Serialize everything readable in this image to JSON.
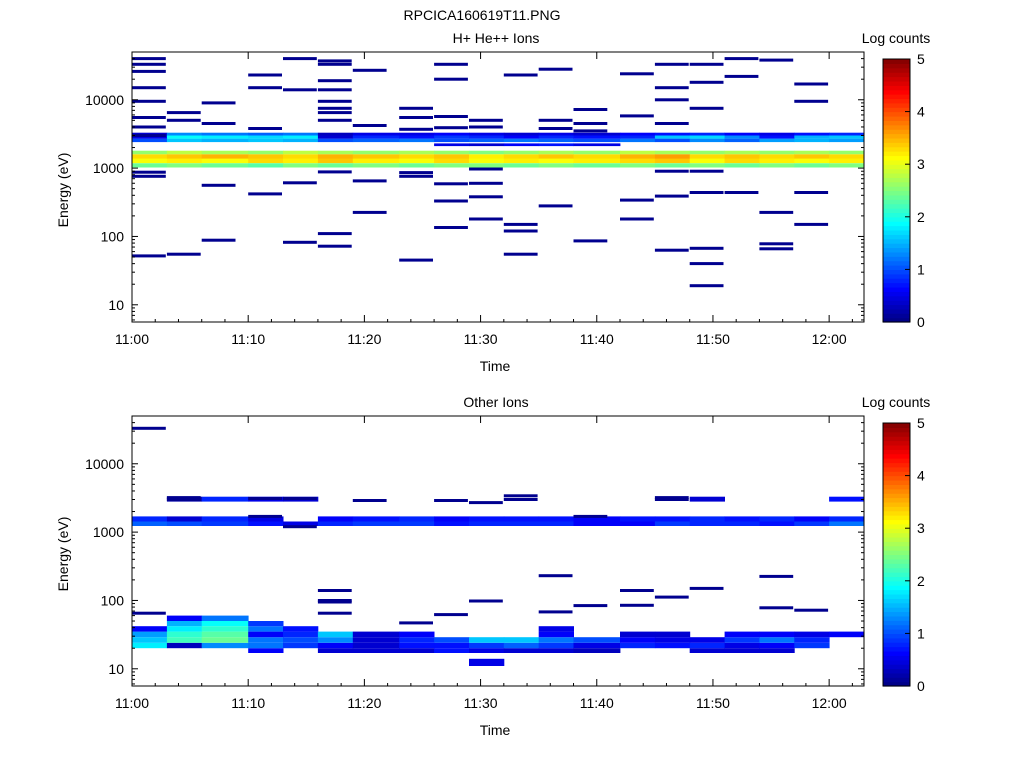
{
  "figure": {
    "title": "RPCICA160619T11.PNG"
  },
  "chart_data": [
    {
      "type": "heatmap",
      "title": "H+ He++ Ions",
      "xlabel": "Time",
      "ylabel": "Energy (eV)",
      "x_ticks": [
        "11:00",
        "11:10",
        "11:20",
        "11:30",
        "11:40",
        "11:50",
        "12:00"
      ],
      "x_range": [
        "11:00",
        "12:03"
      ],
      "y_scale": "log",
      "y_range": [
        5.6,
        50000
      ],
      "y_ticks": [
        "10",
        "100",
        "1000",
        "10000"
      ],
      "colorbar": {
        "label": "Log counts",
        "range": [
          0,
          5
        ],
        "ticks": [
          "0",
          "1",
          "2",
          "3",
          "4",
          "5"
        ],
        "colormap": "jet"
      },
      "time_bins": [
        "11:00",
        "11:03",
        "11:06",
        "11:10",
        "11:13",
        "11:16",
        "11:19",
        "11:23",
        "11:26",
        "11:29",
        "11:32",
        "11:35",
        "11:38",
        "11:42",
        "11:45",
        "11:48",
        "11:51",
        "11:54",
        "11:57",
        "12:00"
      ],
      "bands": [
        {
          "e_lo": 1020,
          "e_hi": 1180,
          "values": [
            2.4,
            2.5,
            2.4,
            2.3,
            2.5,
            2.4,
            2.5,
            2.4,
            2.5,
            2.5,
            2.4,
            2.5,
            2.4,
            2.5,
            2.4,
            2.5,
            2.4,
            2.5,
            2.4,
            2.5
          ]
        },
        {
          "e_lo": 1180,
          "e_hi": 1380,
          "values": [
            3.1,
            3.2,
            3.1,
            3.3,
            3.2,
            3.4,
            3.2,
            3.1,
            3.3,
            3.1,
            3.2,
            3.1,
            3.2,
            3.3,
            3.4,
            3.1,
            3.3,
            3.2,
            3.1,
            3.2
          ]
        },
        {
          "e_lo": 1380,
          "e_hi": 1600,
          "values": [
            3.3,
            3.4,
            3.5,
            3.4,
            3.3,
            3.5,
            3.4,
            3.3,
            3.4,
            3.2,
            3.3,
            3.4,
            3.3,
            3.5,
            3.6,
            3.3,
            3.4,
            3.3,
            3.4,
            3.3
          ]
        },
        {
          "e_lo": 1600,
          "e_hi": 1800,
          "values": [
            2.6,
            2.8,
            2.7,
            2.6,
            2.8,
            2.7,
            2.6,
            2.7,
            2.6,
            2.5,
            2.6,
            2.7,
            2.6,
            2.8,
            2.7,
            2.6,
            2.7,
            2.6,
            2.7,
            2.6
          ]
        },
        {
          "e_lo": 2400,
          "e_hi": 2700,
          "values": [
            1.0,
            1.6,
            1.5,
            1.6,
            1.5,
            1.0,
            1.1,
            1.2,
            1.0,
            1.1,
            1.2,
            1.1,
            1.0,
            1.2,
            1.0,
            1.3,
            1.1,
            1.4,
            1.5,
            1.4
          ]
        },
        {
          "e_lo": 2700,
          "e_hi": 3000,
          "values": [
            0.5,
            1.9,
            1.8,
            1.7,
            1.8,
            0.4,
            0.8,
            0.7,
            0.9,
            0.8,
            0.6,
            0.8,
            0.7,
            0.8,
            1.6,
            1.7,
            1.3,
            0.7,
            1.5,
            1.6
          ]
        },
        {
          "e_lo": 3000,
          "e_hi": 3300,
          "values": [
            0.4,
            1.3,
            1.2,
            1.1,
            1.2,
            0.3,
            0.5,
            0.5,
            0.6,
            0.5,
            0.4,
            0.5,
            0.4,
            0.6,
            0.7,
            0.8,
            0.6,
            0.5,
            0.7,
            0.8
          ]
        },
        {
          "e_lo": 2100,
          "e_hi": 2300,
          "values": [
            0.0,
            0.0,
            0.0,
            0.0,
            0.0,
            0.0,
            0.0,
            0.0,
            0.5,
            0.4,
            0.6,
            0.7,
            0.5,
            0.0,
            0.0,
            0.0,
            0.0,
            0.0,
            0.0,
            0.0
          ]
        }
      ],
      "lines": [
        {
          "t": "11:00",
          "e": 40000
        },
        {
          "t": "11:00",
          "e": 33000
        },
        {
          "t": "11:00",
          "e": 26000
        },
        {
          "t": "11:00",
          "e": 15000
        },
        {
          "t": "11:00",
          "e": 9500
        },
        {
          "t": "11:00",
          "e": 5500
        },
        {
          "t": "11:00",
          "e": 4000
        },
        {
          "t": "11:00",
          "e": 3000
        },
        {
          "t": "11:00",
          "e": 870
        },
        {
          "t": "11:00",
          "e": 760
        },
        {
          "t": "11:00",
          "e": 52
        },
        {
          "t": "11:03",
          "e": 6500
        },
        {
          "t": "11:03",
          "e": 5000
        },
        {
          "t": "11:03",
          "e": 55
        },
        {
          "t": "11:06",
          "e": 9000
        },
        {
          "t": "11:06",
          "e": 4500
        },
        {
          "t": "11:06",
          "e": 560
        },
        {
          "t": "11:06",
          "e": 88
        },
        {
          "t": "11:10",
          "e": 23000
        },
        {
          "t": "11:10",
          "e": 15000
        },
        {
          "t": "11:10",
          "e": 3800
        },
        {
          "t": "11:10",
          "e": 420
        },
        {
          "t": "11:13",
          "e": 40000
        },
        {
          "t": "11:13",
          "e": 14000
        },
        {
          "t": "11:13",
          "e": 610
        },
        {
          "t": "11:13",
          "e": 82
        },
        {
          "t": "11:16",
          "e": 37000
        },
        {
          "t": "11:16",
          "e": 33000
        },
        {
          "t": "11:16",
          "e": 19000
        },
        {
          "t": "11:16",
          "e": 14000
        },
        {
          "t": "11:16",
          "e": 9500
        },
        {
          "t": "11:16",
          "e": 7500
        },
        {
          "t": "11:16",
          "e": 6500
        },
        {
          "t": "11:16",
          "e": 5000
        },
        {
          "t": "11:16",
          "e": 880
        },
        {
          "t": "11:16",
          "e": 110
        },
        {
          "t": "11:16",
          "e": 72
        },
        {
          "t": "11:19",
          "e": 27000
        },
        {
          "t": "11:19",
          "e": 4200
        },
        {
          "t": "11:19",
          "e": 650
        },
        {
          "t": "11:19",
          "e": 225
        },
        {
          "t": "11:23",
          "e": 7500
        },
        {
          "t": "11:23",
          "e": 5500
        },
        {
          "t": "11:23",
          "e": 3700
        },
        {
          "t": "11:23",
          "e": 860
        },
        {
          "t": "11:23",
          "e": 760
        },
        {
          "t": "11:23",
          "e": 45
        },
        {
          "t": "11:26",
          "e": 33000
        },
        {
          "t": "11:26",
          "e": 20000
        },
        {
          "t": "11:26",
          "e": 5700
        },
        {
          "t": "11:26",
          "e": 3900
        },
        {
          "t": "11:26",
          "e": 590
        },
        {
          "t": "11:26",
          "e": 330
        },
        {
          "t": "11:26",
          "e": 135
        },
        {
          "t": "11:29",
          "e": 5000
        },
        {
          "t": "11:29",
          "e": 4000
        },
        {
          "t": "11:29",
          "e": 970
        },
        {
          "t": "11:29",
          "e": 600
        },
        {
          "t": "11:29",
          "e": 380
        },
        {
          "t": "11:29",
          "e": 180
        },
        {
          "t": "11:32",
          "e": 23000
        },
        {
          "t": "11:32",
          "e": 150
        },
        {
          "t": "11:32",
          "e": 120
        },
        {
          "t": "11:32",
          "e": 55
        },
        {
          "t": "11:35",
          "e": 28000
        },
        {
          "t": "11:35",
          "e": 5000
        },
        {
          "t": "11:35",
          "e": 3800
        },
        {
          "t": "11:35",
          "e": 280
        },
        {
          "t": "11:38",
          "e": 7200
        },
        {
          "t": "11:38",
          "e": 4500
        },
        {
          "t": "11:38",
          "e": 3500
        },
        {
          "t": "11:38",
          "e": 86
        },
        {
          "t": "11:42",
          "e": 24000
        },
        {
          "t": "11:42",
          "e": 5800
        },
        {
          "t": "11:42",
          "e": 340
        },
        {
          "t": "11:42",
          "e": 180
        },
        {
          "t": "11:45",
          "e": 33000
        },
        {
          "t": "11:45",
          "e": 15000
        },
        {
          "t": "11:45",
          "e": 10000
        },
        {
          "t": "11:45",
          "e": 4500
        },
        {
          "t": "11:45",
          "e": 900
        },
        {
          "t": "11:45",
          "e": 390
        },
        {
          "t": "11:45",
          "e": 63
        },
        {
          "t": "11:48",
          "e": 33000
        },
        {
          "t": "11:48",
          "e": 18000
        },
        {
          "t": "11:48",
          "e": 7500
        },
        {
          "t": "11:48",
          "e": 900
        },
        {
          "t": "11:48",
          "e": 440
        },
        {
          "t": "11:48",
          "e": 67
        },
        {
          "t": "11:48",
          "e": 40
        },
        {
          "t": "11:48",
          "e": 19
        },
        {
          "t": "11:51",
          "e": 40000
        },
        {
          "t": "11:51",
          "e": 22000
        },
        {
          "t": "11:51",
          "e": 440
        },
        {
          "t": "11:54",
          "e": 38000
        },
        {
          "t": "11:54",
          "e": 225
        },
        {
          "t": "11:54",
          "e": 78
        },
        {
          "t": "11:54",
          "e": 66
        },
        {
          "t": "11:57",
          "e": 17000
        },
        {
          "t": "11:57",
          "e": 9500
        },
        {
          "t": "11:57",
          "e": 440
        },
        {
          "t": "11:57",
          "e": 150
        }
      ]
    },
    {
      "type": "heatmap",
      "title": "Other Ions",
      "xlabel": "Time",
      "ylabel": "Energy (eV)",
      "x_ticks": [
        "11:00",
        "11:10",
        "11:20",
        "11:30",
        "11:40",
        "11:50",
        "12:00"
      ],
      "x_range": [
        "11:00",
        "12:03"
      ],
      "y_scale": "log",
      "y_range": [
        5.6,
        50000
      ],
      "y_ticks": [
        "10",
        "100",
        "1000",
        "10000"
      ],
      "colorbar": {
        "label": "Log counts",
        "range": [
          0,
          5
        ],
        "ticks": [
          "0",
          "1",
          "2",
          "3",
          "4",
          "5"
        ],
        "colormap": "jet"
      },
      "time_bins": [
        "11:00",
        "11:03",
        "11:06",
        "11:10",
        "11:13",
        "11:16",
        "11:19",
        "11:23",
        "11:26",
        "11:29",
        "11:32",
        "11:35",
        "11:38",
        "11:42",
        "11:45",
        "11:48",
        "11:51",
        "11:54",
        "11:57",
        "12:00"
      ],
      "bands": [
        {
          "e_lo": 1230,
          "e_hi": 1430,
          "values": [
            1.1,
            1.0,
            0.9,
            0.7,
            0.5,
            0.8,
            0.9,
            0.9,
            0.7,
            0.8,
            0.8,
            0.8,
            0.6,
            0.6,
            0.9,
            0.8,
            0.8,
            0.7,
            0.9,
            1.2
          ]
        },
        {
          "e_lo": 1430,
          "e_hi": 1700,
          "values": [
            0.8,
            0.4,
            0.8,
            0.5,
            0.0,
            0.6,
            0.7,
            0.8,
            0.6,
            0.7,
            0.7,
            0.7,
            0.6,
            0.7,
            0.7,
            0.8,
            0.7,
            0.8,
            0.6,
            0.8
          ]
        },
        {
          "e_lo": 2800,
          "e_hi": 3300,
          "values": [
            0.0,
            0.2,
            0.8,
            0.5,
            0.4,
            0.0,
            0.0,
            0.0,
            0.0,
            0.0,
            0.0,
            0.0,
            0.0,
            0.0,
            0.0,
            0.4,
            0.0,
            0.0,
            0.0,
            0.7
          ]
        },
        {
          "e_lo": 17,
          "e_hi": 20,
          "values": [
            0.0,
            0.0,
            0.0,
            0.6,
            0.0,
            0.4,
            0.4,
            0.4,
            0.7,
            0.5,
            0.4,
            0.4,
            0.3,
            0.0,
            0.0,
            0.4,
            0.4,
            0.4,
            0.0,
            0.0
          ]
        },
        {
          "e_lo": 20,
          "e_hi": 24,
          "values": [
            1.8,
            0.3,
            1.3,
            1.2,
            0.9,
            0.6,
            0.4,
            0.7,
            0.7,
            0.9,
            1.1,
            0.9,
            0.5,
            0.8,
            0.7,
            0.8,
            0.5,
            0.6,
            0.9,
            0.0
          ]
        },
        {
          "e_lo": 24,
          "e_hi": 29,
          "values": [
            1.6,
            2.2,
            2.4,
            1.2,
            1.0,
            1.3,
            0.4,
            0.8,
            1.0,
            1.6,
            1.6,
            1.2,
            1.0,
            0.6,
            0.5,
            0.5,
            0.9,
            1.2,
            0.8,
            0.0
          ]
        },
        {
          "e_lo": 29,
          "e_hi": 35,
          "values": [
            1.4,
            2.1,
            2.3,
            0.6,
            0.8,
            1.6,
            0.4,
            0.6,
            0.0,
            0.0,
            0.0,
            0.6,
            0.0,
            0.4,
            0.4,
            0.0,
            0.6,
            0.6,
            0.5,
            0.6
          ]
        },
        {
          "e_lo": 35,
          "e_hi": 42,
          "values": [
            0.6,
            1.8,
            2.1,
            1.2,
            0.7,
            0.0,
            0.0,
            0.0,
            0.0,
            0.0,
            0.0,
            0.5,
            0.0,
            0.0,
            0.0,
            0.0,
            0.0,
            0.0,
            0.0,
            0.0
          ]
        },
        {
          "e_lo": 42,
          "e_hi": 50,
          "values": [
            0.0,
            1.5,
            1.9,
            0.9,
            0.0,
            0.0,
            0.0,
            0.0,
            0.0,
            0.0,
            0.0,
            0.0,
            0.0,
            0.0,
            0.0,
            0.0,
            0.0,
            0.0,
            0.0,
            0.0
          ]
        },
        {
          "e_lo": 50,
          "e_hi": 60,
          "values": [
            0.0,
            0.6,
            1.2,
            0.0,
            0.0,
            0.0,
            0.0,
            0.0,
            0.0,
            0.0,
            0.0,
            0.0,
            0.0,
            0.0,
            0.0,
            0.0,
            0.0,
            0.0,
            0.0,
            0.0
          ]
        },
        {
          "e_lo": 11,
          "e_hi": 14,
          "values": [
            0.0,
            0.0,
            0.0,
            0.0,
            0.0,
            0.0,
            0.0,
            0.0,
            0.0,
            0.5,
            0.0,
            0.0,
            0.0,
            0.0,
            0.0,
            0.0,
            0.0,
            0.0,
            0.0,
            0.0
          ]
        }
      ],
      "lines": [
        {
          "t": "11:00",
          "e": 33000
        },
        {
          "t": "11:00",
          "e": 65
        },
        {
          "t": "11:03",
          "e": 3200
        },
        {
          "t": "11:03",
          "e": 3000
        },
        {
          "t": "11:10",
          "e": 3100
        },
        {
          "t": "11:10",
          "e": 1700
        },
        {
          "t": "11:13",
          "e": 3100
        },
        {
          "t": "11:13",
          "e": 1200
        },
        {
          "t": "11:16",
          "e": 140
        },
        {
          "t": "11:16",
          "e": 100
        },
        {
          "t": "11:16",
          "e": 95
        },
        {
          "t": "11:16",
          "e": 65
        },
        {
          "t": "11:19",
          "e": 2900
        },
        {
          "t": "11:23",
          "e": 47
        },
        {
          "t": "11:26",
          "e": 2900
        },
        {
          "t": "11:26",
          "e": 62
        },
        {
          "t": "11:29",
          "e": 2700
        },
        {
          "t": "11:29",
          "e": 98
        },
        {
          "t": "11:32",
          "e": 3400
        },
        {
          "t": "11:32",
          "e": 3000
        },
        {
          "t": "11:35",
          "e": 230
        },
        {
          "t": "11:35",
          "e": 68
        },
        {
          "t": "11:38",
          "e": 1700
        },
        {
          "t": "11:38",
          "e": 84
        },
        {
          "t": "11:42",
          "e": 140
        },
        {
          "t": "11:42",
          "e": 85
        },
        {
          "t": "11:45",
          "e": 3000
        },
        {
          "t": "11:45",
          "e": 3200
        },
        {
          "t": "11:45",
          "e": 112
        },
        {
          "t": "11:48",
          "e": 150
        },
        {
          "t": "11:54",
          "e": 225
        },
        {
          "t": "11:54",
          "e": 78
        },
        {
          "t": "11:57",
          "e": 72
        }
      ]
    }
  ]
}
